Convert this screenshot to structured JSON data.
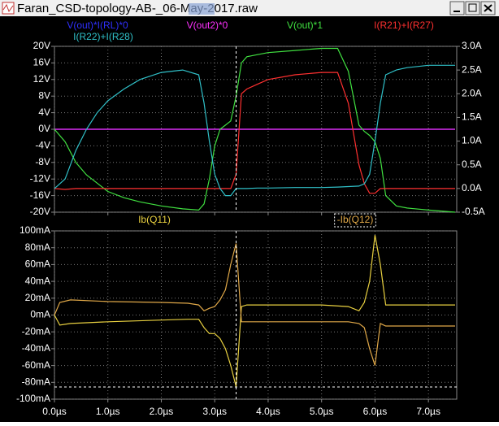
{
  "window": {
    "title": "Faran_CSD-topology-AB-_06-May-2017.raw"
  },
  "chart_data": [
    {
      "type": "line",
      "x": [
        0,
        0.2,
        0.4,
        0.6,
        0.8,
        1.0,
        1.3,
        1.6,
        2.0,
        2.4,
        2.7,
        2.8,
        2.9,
        3.0,
        3.1,
        3.2,
        3.3,
        3.4,
        3.5,
        3.6,
        3.8,
        4.0,
        4.5,
        5.0,
        5.3,
        5.5,
        5.7,
        5.8,
        5.9,
        6.0,
        6.1,
        6.2,
        6.4,
        6.6,
        7.0,
        7.5
      ],
      "xlim": [
        0,
        7.53
      ],
      "xticks": [
        {
          "value": 0,
          "label": "0.0µs"
        },
        {
          "value": 1,
          "label": "1.0µs"
        },
        {
          "value": 2,
          "label": "2.0µs"
        },
        {
          "value": 3,
          "label": "3.0µs"
        },
        {
          "value": 4,
          "label": "4.0µs"
        },
        {
          "value": 5,
          "label": "5.0µs"
        },
        {
          "value": 6,
          "label": "6.0µs"
        },
        {
          "value": 7,
          "label": "7.0µs"
        }
      ],
      "ylim": [
        -20,
        20
      ],
      "yticks": [
        {
          "value": -20,
          "label": "-20V"
        },
        {
          "value": -16,
          "label": "-16V"
        },
        {
          "value": -12,
          "label": "-12V"
        },
        {
          "value": -8,
          "label": "-8V"
        },
        {
          "value": -4,
          "label": "-4V"
        },
        {
          "value": 0,
          "label": "0V"
        },
        {
          "value": 4,
          "label": "4V"
        },
        {
          "value": 8,
          "label": "8V"
        },
        {
          "value": 12,
          "label": "12V"
        },
        {
          "value": 16,
          "label": "16V"
        },
        {
          "value": 20,
          "label": "20V"
        }
      ],
      "y2lim": [
        -0.5,
        3.0
      ],
      "y2ticks": [
        {
          "value": -0.5,
          "label": "-0.5A"
        },
        {
          "value": 0,
          "label": "0.0A"
        },
        {
          "value": 0.5,
          "label": "0.5A"
        },
        {
          "value": 1,
          "label": "1.0A"
        },
        {
          "value": 1.5,
          "label": "1.5A"
        },
        {
          "value": 2,
          "label": "2.0A"
        },
        {
          "value": 2.5,
          "label": "2.5A"
        },
        {
          "value": 3,
          "label": "3.0A"
        }
      ],
      "grid": true,
      "series": [
        {
          "name": "V(out)*I(RL)*0",
          "color": "#3030ff",
          "values": [
            0,
            0,
            0,
            0,
            0,
            0,
            0,
            0,
            0,
            0,
            0,
            0,
            0,
            0,
            0,
            0,
            0,
            0,
            0,
            0,
            0,
            0,
            0,
            0,
            0,
            0,
            0,
            0,
            0,
            0,
            0,
            0,
            0,
            0,
            0,
            0
          ]
        },
        {
          "name": "V(out2)*0",
          "color": "#ff30ff",
          "values": [
            0,
            0,
            0,
            0,
            0,
            0,
            0,
            0,
            0,
            0,
            0,
            0,
            0,
            0,
            0,
            0,
            0,
            0,
            0,
            0,
            0,
            0,
            0,
            0,
            0,
            0,
            0,
            0,
            0,
            0,
            0,
            0,
            0,
            0,
            0,
            0
          ]
        },
        {
          "name": "V(out)*1",
          "color": "#40e040",
          "values": [
            0,
            -3,
            -8,
            -11,
            -13,
            -15,
            -16.5,
            -17.5,
            -18.5,
            -19.2,
            -19.5,
            -18,
            -12,
            -4,
            0,
            1,
            2,
            8,
            16,
            17.5,
            18,
            18.5,
            19,
            19.5,
            19.5,
            14,
            1,
            -0.5,
            -1.5,
            -3,
            -7,
            -16,
            -18.5,
            -19,
            -19.5,
            -20
          ]
        },
        {
          "name": "I(R21)+I(R27)",
          "color": "#ff3030",
          "axis": "y2",
          "values": [
            0,
            -0.02,
            0,
            0,
            0,
            0,
            0,
            0,
            0,
            0,
            0,
            0,
            0,
            0,
            0,
            0,
            0,
            0.3,
            2.0,
            2.1,
            2.2,
            2.3,
            2.4,
            2.45,
            2.45,
            1.8,
            0.5,
            0.1,
            -0.1,
            -0.1,
            0,
            0,
            0,
            0,
            0,
            0
          ]
        },
        {
          "name": "I(R22)+I(R28)",
          "color": "#30c0c8",
          "axis": "y2",
          "values": [
            0,
            0.2,
            0.8,
            1.25,
            1.6,
            1.85,
            2.1,
            2.3,
            2.45,
            2.5,
            2.4,
            1.8,
            1.0,
            0.3,
            0,
            -0.15,
            -0.15,
            0,
            0,
            0,
            0.01,
            0.01,
            0.02,
            0.02,
            0.03,
            0.04,
            0.05,
            0.1,
            0.3,
            1.0,
            1.8,
            2.4,
            2.5,
            2.55,
            2.6,
            2.6
          ]
        }
      ]
    },
    {
      "type": "line",
      "x": [
        0,
        0.1,
        0.3,
        1.0,
        2.0,
        2.5,
        2.7,
        2.8,
        2.9,
        3.0,
        3.1,
        3.2,
        3.3,
        3.4,
        3.5,
        3.6,
        4.0,
        5.0,
        5.5,
        5.7,
        5.8,
        5.9,
        6.0,
        6.1,
        6.2,
        7.5
      ],
      "xlim": [
        0,
        7.53
      ],
      "xticks": [
        {
          "value": 0,
          "label": "0.0µs"
        },
        {
          "value": 1,
          "label": "1.0µs"
        },
        {
          "value": 2,
          "label": "2.0µs"
        },
        {
          "value": 3,
          "label": "3.0µs"
        },
        {
          "value": 4,
          "label": "4.0µs"
        },
        {
          "value": 5,
          "label": "5.0µs"
        },
        {
          "value": 6,
          "label": "6.0µs"
        },
        {
          "value": 7,
          "label": "7.0µs"
        }
      ],
      "ylim": [
        -100,
        100
      ],
      "yticks": [
        {
          "value": -100,
          "label": "-100mA"
        },
        {
          "value": -80,
          "label": "-80mA"
        },
        {
          "value": -60,
          "label": "-60mA"
        },
        {
          "value": -40,
          "label": "-40mA"
        },
        {
          "value": -20,
          "label": "-20mA"
        },
        {
          "value": 0,
          "label": "0mA"
        },
        {
          "value": 20,
          "label": "20mA"
        },
        {
          "value": 40,
          "label": "40mA"
        },
        {
          "value": 60,
          "label": "60mA"
        },
        {
          "value": 80,
          "label": "80mA"
        },
        {
          "value": 100,
          "label": "100mA"
        }
      ],
      "grid": true,
      "series": [
        {
          "name": "Ib(Q11)",
          "color": "#e8d040",
          "values": [
            0,
            -12,
            -10,
            -8,
            -6,
            -5,
            -5,
            -15,
            -22,
            -22,
            -28,
            -40,
            -60,
            -85,
            10,
            12,
            12,
            12,
            10,
            5,
            15,
            40,
            95,
            60,
            12,
            12
          ]
        },
        {
          "name": "-Ib(Q12)",
          "color": "#e0a848",
          "values": [
            0,
            15,
            18,
            16,
            15,
            14,
            12,
            5,
            8,
            10,
            18,
            30,
            60,
            85,
            -8,
            -8,
            -8,
            -8,
            -8,
            -10,
            -15,
            -40,
            -60,
            -10,
            -13,
            -13
          ]
        }
      ]
    }
  ]
}
